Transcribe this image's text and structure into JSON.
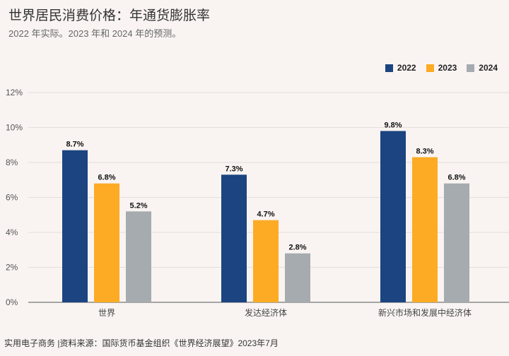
{
  "title": "世界居民消费价格：年通货膨胀率",
  "subtitle": "2022 年实际。2023 年和 2024 年的预测。",
  "footer": "实用电子商务 |资料来源：国际货币基金组织《世界经济展望》2023年7月",
  "chart_data": {
    "type": "bar",
    "categories": [
      "世界",
      "发达经济体",
      "新兴市场和发展中经济体"
    ],
    "series": [
      {
        "name": "2022",
        "color": "#1b4480",
        "values": [
          8.7,
          7.3,
          9.8
        ]
      },
      {
        "name": "2023",
        "color": "#fdab24",
        "values": [
          6.8,
          4.7,
          8.3
        ]
      },
      {
        "name": "2024",
        "color": "#a6abaf",
        "values": [
          5.2,
          2.8,
          6.8
        ]
      }
    ],
    "ylim": [
      0,
      12
    ],
    "yticks": [
      "0%",
      "2%",
      "4%",
      "6%",
      "8%",
      "10%",
      "12%"
    ],
    "data_labels": [
      [
        "8.7%",
        "7.3%",
        "9.8%"
      ],
      [
        "6.8%",
        "4.7%",
        "8.3%"
      ],
      [
        "5.2%",
        "2.8%",
        "6.8%"
      ]
    ],
    "grid": true,
    "legend": "top-right"
  }
}
